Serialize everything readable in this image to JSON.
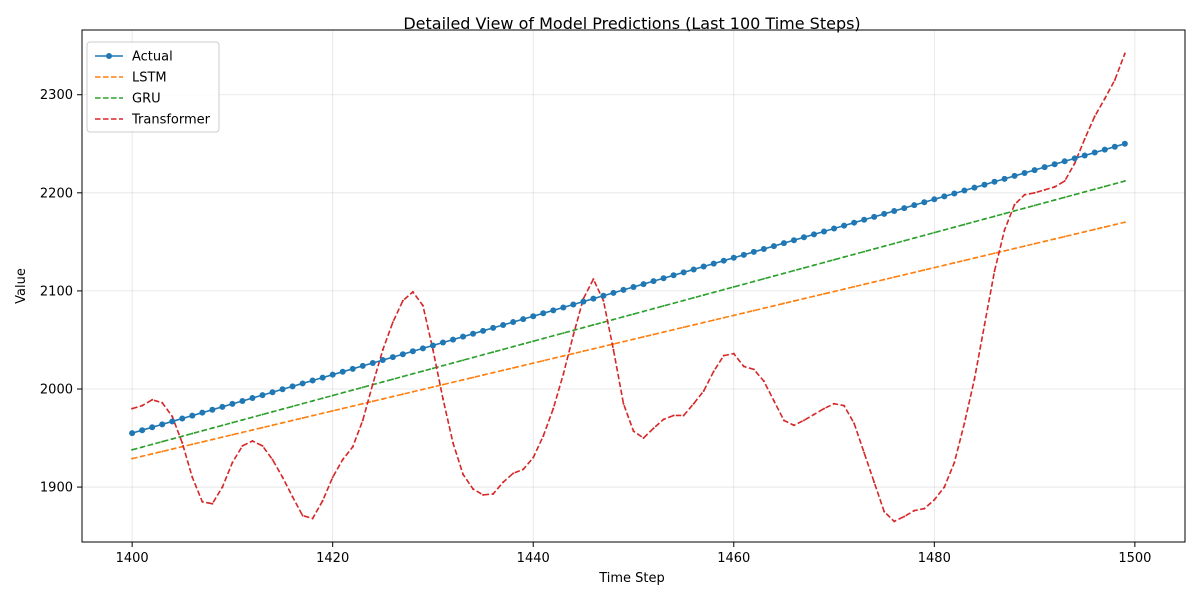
{
  "chart_data": {
    "type": "line",
    "title": "Detailed View of Model Predictions (Last 100 Time Steps)",
    "xlabel": "Time Step",
    "ylabel": "Value",
    "xlim": [
      1395,
      1505
    ],
    "ylim": [
      1844,
      2366
    ],
    "xticks": [
      1400,
      1420,
      1440,
      1460,
      1480,
      1500
    ],
    "yticks": [
      1900,
      2000,
      2100,
      2200,
      2300
    ],
    "grid": true,
    "legend_position": "top-left",
    "x_start": 1400,
    "x_end": 1499,
    "series": [
      {
        "name": "Actual",
        "color": "#1f77b4",
        "style": "solid-marker",
        "start": 1955,
        "end": 2250
      },
      {
        "name": "LSTM",
        "color": "#ff7f0e",
        "style": "dashed",
        "start": 1929,
        "end": 2170
      },
      {
        "name": "GRU",
        "color": "#2ca02c",
        "style": "dashed",
        "start": 1938,
        "end": 2212
      },
      {
        "name": "Transformer",
        "color": "#d62728",
        "style": "dashed",
        "points": [
          [
            1400,
            1980
          ],
          [
            1401,
            1983
          ],
          [
            1402,
            1989
          ],
          [
            1403,
            1986
          ],
          [
            1404,
            1972
          ],
          [
            1405,
            1945
          ],
          [
            1406,
            1910
          ],
          [
            1407,
            1885
          ],
          [
            1408,
            1883
          ],
          [
            1409,
            1900
          ],
          [
            1410,
            1925
          ],
          [
            1411,
            1942
          ],
          [
            1412,
            1947
          ],
          [
            1413,
            1942
          ],
          [
            1414,
            1928
          ],
          [
            1415,
            1910
          ],
          [
            1416,
            1890
          ],
          [
            1417,
            1871
          ],
          [
            1418,
            1868
          ],
          [
            1419,
            1886
          ],
          [
            1420,
            1910
          ],
          [
            1421,
            1928
          ],
          [
            1422,
            1941
          ],
          [
            1423,
            1968
          ],
          [
            1424,
            2005
          ],
          [
            1425,
            2040
          ],
          [
            1426,
            2068
          ],
          [
            1427,
            2090
          ],
          [
            1428,
            2099
          ],
          [
            1429,
            2085
          ],
          [
            1430,
            2040
          ],
          [
            1431,
            1990
          ],
          [
            1432,
            1945
          ],
          [
            1433,
            1913
          ],
          [
            1434,
            1898
          ],
          [
            1435,
            1892
          ],
          [
            1436,
            1893
          ],
          [
            1437,
            1905
          ],
          [
            1438,
            1914
          ],
          [
            1439,
            1918
          ],
          [
            1440,
            1930
          ],
          [
            1441,
            1952
          ],
          [
            1442,
            1980
          ],
          [
            1443,
            2015
          ],
          [
            1444,
            2055
          ],
          [
            1445,
            2092
          ],
          [
            1446,
            2112
          ],
          [
            1447,
            2090
          ],
          [
            1448,
            2040
          ],
          [
            1449,
            1985
          ],
          [
            1450,
            1957
          ],
          [
            1451,
            1950
          ],
          [
            1452,
            1960
          ],
          [
            1453,
            1969
          ],
          [
            1454,
            1973
          ],
          [
            1455,
            1973
          ],
          [
            1456,
            1985
          ],
          [
            1457,
            1998
          ],
          [
            1458,
            2018
          ],
          [
            1459,
            2034
          ],
          [
            1460,
            2036
          ],
          [
            1461,
            2023
          ],
          [
            1462,
            2020
          ],
          [
            1463,
            2008
          ],
          [
            1464,
            1988
          ],
          [
            1465,
            1968
          ],
          [
            1466,
            1963
          ],
          [
            1467,
            1968
          ],
          [
            1468,
            1974
          ],
          [
            1469,
            1980
          ],
          [
            1470,
            1985
          ],
          [
            1471,
            1983
          ],
          [
            1472,
            1965
          ],
          [
            1473,
            1935
          ],
          [
            1474,
            1905
          ],
          [
            1475,
            1875
          ],
          [
            1476,
            1865
          ],
          [
            1477,
            1870
          ],
          [
            1478,
            1876
          ],
          [
            1479,
            1878
          ],
          [
            1480,
            1887
          ],
          [
            1481,
            1900
          ],
          [
            1482,
            1925
          ],
          [
            1483,
            1965
          ],
          [
            1484,
            2010
          ],
          [
            1485,
            2065
          ],
          [
            1486,
            2120
          ],
          [
            1487,
            2162
          ],
          [
            1488,
            2188
          ],
          [
            1489,
            2198
          ],
          [
            1490,
            2200
          ],
          [
            1491,
            2203
          ],
          [
            1492,
            2206
          ],
          [
            1493,
            2212
          ],
          [
            1494,
            2230
          ],
          [
            1495,
            2255
          ],
          [
            1496,
            2278
          ],
          [
            1497,
            2296
          ],
          [
            1498,
            2315
          ],
          [
            1499,
            2342
          ]
        ]
      }
    ]
  }
}
